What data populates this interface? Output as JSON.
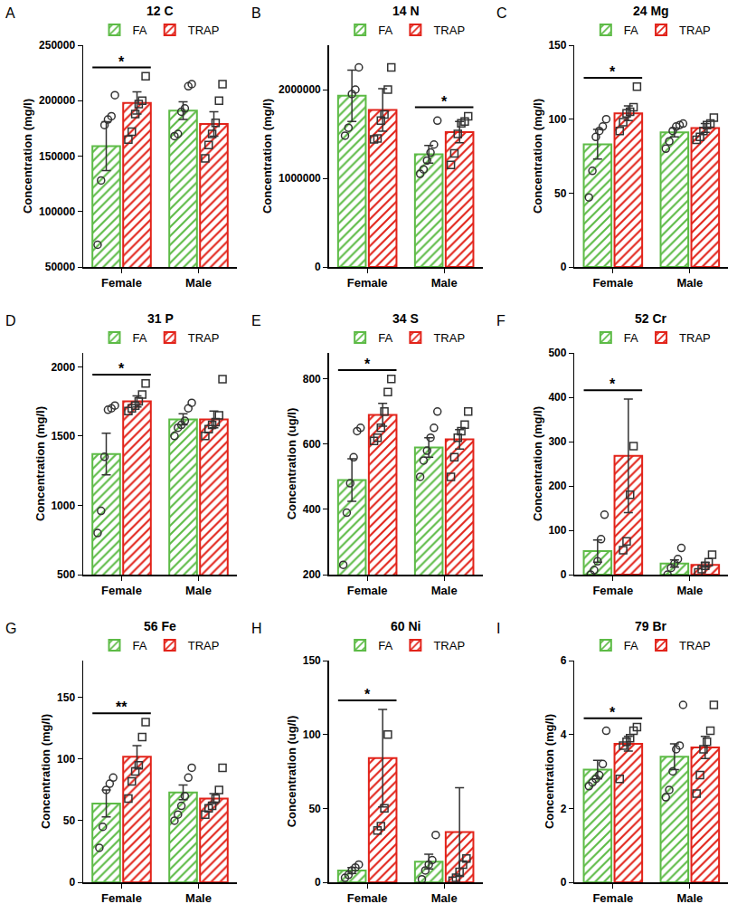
{
  "chart_data": [
    {
      "type": "bar",
      "panel": "A",
      "title": "12 C",
      "y_label": "Concentration (mg/l)",
      "categories": [
        "Female",
        "Male"
      ],
      "series": [
        {
          "name": "FA",
          "color": "#5dbb46",
          "marker": "circle",
          "values": [
            159000,
            191000
          ],
          "errors": [
            22000,
            8000
          ],
          "points": [
            [
              70000,
              128000,
              178000,
              183000,
              186000,
              205000
            ],
            [
              168000,
              170000,
              190000,
              193000,
              213000,
              215000
            ]
          ]
        },
        {
          "name": "TRAP",
          "color": "#e2231a",
          "marker": "square",
          "values": [
            198000,
            179000
          ],
          "errors": [
            10000,
            11000
          ],
          "points": [
            [
              165000,
              172000,
              188000,
              197000,
              200000,
              222000
            ],
            [
              148000,
              160000,
              170000,
              180000,
              200000,
              215000
            ]
          ]
        }
      ],
      "ylim": [
        50000,
        250000
      ],
      "yticks": [
        50000,
        100000,
        150000,
        200000,
        250000
      ],
      "significance": [
        {
          "category": "Female",
          "label": "*"
        }
      ],
      "grid": false
    },
    {
      "type": "bar",
      "panel": "B",
      "title": "14 N",
      "y_label": "Concentration (mg/l)",
      "categories": [
        "Female",
        "Male"
      ],
      "series": [
        {
          "name": "FA",
          "color": "#5dbb46",
          "marker": "circle",
          "values": [
            1930000,
            1270000
          ],
          "errors": [
            290000,
            100000
          ],
          "points": [
            [
              1480000,
              1570000,
              1950000,
              2000000,
              2250000
            ],
            [
              1050000,
              1100000,
              1200000,
              1290000,
              1380000,
              1650000
            ]
          ]
        },
        {
          "name": "TRAP",
          "color": "#e2231a",
          "marker": "square",
          "values": [
            1770000,
            1520000
          ],
          "errors": [
            240000,
            120000
          ],
          "points": [
            [
              1440000,
              1450000,
              1650000,
              1720000,
              2000000,
              2250000
            ],
            [
              1150000,
              1280000,
              1500000,
              1620000,
              1640000,
              1700000
            ]
          ]
        }
      ],
      "ylim": [
        0,
        2500000
      ],
      "yticks": [
        0,
        1000000,
        2000000
      ],
      "significance": [
        {
          "category": "Male",
          "label": "*"
        }
      ],
      "grid": false
    },
    {
      "type": "bar",
      "panel": "C",
      "title": "24 Mg",
      "y_label": "Concentration (mg/l)",
      "categories": [
        "Female",
        "Male"
      ],
      "series": [
        {
          "name": "FA",
          "color": "#5dbb46",
          "marker": "circle",
          "values": [
            83,
            91
          ],
          "errors": [
            10,
            3
          ],
          "points": [
            [
              47,
              65,
              88,
              92,
              95,
              100
            ],
            [
              80,
              85,
              92,
              95,
              96,
              97
            ]
          ]
        },
        {
          "name": "TRAP",
          "color": "#e2231a",
          "marker": "square",
          "values": [
            104,
            94
          ],
          "errors": [
            5,
            3
          ],
          "points": [
            [
              92,
              98,
              104,
              105,
              108,
              122
            ],
            [
              86,
              88,
              92,
              96,
              97,
              101
            ]
          ]
        }
      ],
      "ylim": [
        0,
        150
      ],
      "yticks": [
        0,
        50,
        100,
        150
      ],
      "significance": [
        {
          "category": "Female",
          "label": "*"
        }
      ],
      "grid": false
    },
    {
      "type": "bar",
      "panel": "D",
      "title": "31 P",
      "y_label": "Concentration (mg/l)",
      "categories": [
        "Female",
        "Male"
      ],
      "series": [
        {
          "name": "FA",
          "color": "#5dbb46",
          "marker": "circle",
          "values": [
            1370,
            1620
          ],
          "errors": [
            150,
            40
          ],
          "points": [
            [
              800,
              960,
              1350,
              1690,
              1700,
              1720
            ],
            [
              1500,
              1560,
              1580,
              1610,
              1700,
              1740
            ]
          ]
        },
        {
          "name": "TRAP",
          "color": "#e2231a",
          "marker": "square",
          "values": [
            1750,
            1620
          ],
          "errors": [
            40,
            60
          ],
          "points": [
            [
              1680,
              1700,
              1720,
              1750,
              1800,
              1880
            ],
            [
              1500,
              1550,
              1580,
              1600,
              1650,
              1910
            ]
          ]
        }
      ],
      "ylim": [
        500,
        2100
      ],
      "yticks": [
        500,
        1000,
        1500,
        2000
      ],
      "significance": [
        {
          "category": "Female",
          "label": "*"
        }
      ],
      "grid": false
    },
    {
      "type": "bar",
      "panel": "E",
      "title": "34 S",
      "y_label": "Concentration (ug/l)",
      "categories": [
        "Female",
        "Male"
      ],
      "series": [
        {
          "name": "FA",
          "color": "#5dbb46",
          "marker": "circle",
          "values": [
            490,
            590
          ],
          "errors": [
            65,
            30
          ],
          "points": [
            [
              230,
              390,
              480,
              560,
              640,
              650
            ],
            [
              500,
              550,
              580,
              620,
              650,
              700
            ]
          ]
        },
        {
          "name": "TRAP",
          "color": "#e2231a",
          "marker": "square",
          "values": [
            690,
            615
          ],
          "errors": [
            35,
            30
          ],
          "points": [
            [
              610,
              620,
              650,
              700,
              760,
              800
            ],
            [
              500,
              560,
              620,
              640,
              660,
              700
            ]
          ]
        }
      ],
      "ylim": [
        200,
        880
      ],
      "yticks": [
        200,
        400,
        600,
        800
      ],
      "significance": [
        {
          "category": "Female",
          "label": "*"
        }
      ],
      "grid": false
    },
    {
      "type": "bar",
      "panel": "F",
      "title": "52 Cr",
      "y_label": "Concentration (mg/l)",
      "categories": [
        "Female",
        "Male"
      ],
      "series": [
        {
          "name": "FA",
          "color": "#5dbb46",
          "marker": "circle",
          "values": [
            53,
            25
          ],
          "errors": [
            25,
            8
          ],
          "points": [
            [
              0,
              10,
              30,
              80,
              135
            ],
            [
              0,
              15,
              25,
              35,
              60
            ]
          ]
        },
        {
          "name": "TRAP",
          "color": "#e2231a",
          "marker": "square",
          "values": [
            268,
            22
          ],
          "errors": [
            128,
            5
          ],
          "points": [
            [
              55,
              75,
              180,
              290
            ],
            [
              5,
              12,
              20,
              28,
              45
            ]
          ]
        }
      ],
      "ylim": [
        0,
        500
      ],
      "yticks": [
        0,
        100,
        200,
        300,
        400,
        500
      ],
      "significance": [
        {
          "category": "Female",
          "label": "*"
        }
      ],
      "grid": false
    },
    {
      "type": "bar",
      "panel": "G",
      "title": "56 Fe",
      "y_label": "Concentration (mg/l)",
      "categories": [
        "Female",
        "Male"
      ],
      "series": [
        {
          "name": "FA",
          "color": "#5dbb46",
          "marker": "circle",
          "values": [
            64,
            73
          ],
          "errors": [
            11,
            6
          ],
          "points": [
            [
              28,
              45,
              75,
              80,
              85
            ],
            [
              50,
              55,
              62,
              70,
              85,
              93
            ]
          ]
        },
        {
          "name": "TRAP",
          "color": "#e2231a",
          "marker": "square",
          "values": [
            102,
            68
          ],
          "errors": [
            9,
            4
          ],
          "points": [
            [
              68,
              82,
              90,
              95,
              118,
              130
            ],
            [
              55,
              60,
              62,
              68,
              75,
              93
            ]
          ]
        }
      ],
      "ylim": [
        0,
        180
      ],
      "yticks": [
        0,
        50,
        100,
        150
      ],
      "significance": [
        {
          "category": "Female",
          "label": "**"
        }
      ],
      "grid": false
    },
    {
      "type": "bar",
      "panel": "H",
      "title": "60 Ni",
      "y_label": "Concentration (ug/l)",
      "categories": [
        "Female",
        "Male"
      ],
      "series": [
        {
          "name": "FA",
          "color": "#5dbb46",
          "marker": "circle",
          "values": [
            8,
            14
          ],
          "errors": [
            2,
            5
          ],
          "points": [
            [
              3,
              5,
              8,
              10,
              12
            ],
            [
              2,
              8,
              12,
              15,
              32
            ]
          ]
        },
        {
          "name": "TRAP",
          "color": "#e2231a",
          "marker": "square",
          "values": [
            84,
            34
          ],
          "errors": [
            33,
            30
          ],
          "points": [
            [
              35,
              38,
              50,
              100
            ],
            [
              1,
              3,
              7,
              12,
              16
            ]
          ]
        }
      ],
      "ylim": [
        0,
        150
      ],
      "yticks": [
        0,
        50,
        100,
        150
      ],
      "significance": [
        {
          "category": "Female",
          "label": "*"
        }
      ],
      "grid": false
    },
    {
      "type": "bar",
      "panel": "I",
      "title": "79 Br",
      "y_label": "Concentration (mg/l)",
      "categories": [
        "Female",
        "Male"
      ],
      "series": [
        {
          "name": "FA",
          "color": "#5dbb46",
          "marker": "circle",
          "values": [
            3.05,
            3.4
          ],
          "errors": [
            0.25,
            0.35
          ],
          "points": [
            [
              2.6,
              2.7,
              2.8,
              2.9,
              3.2,
              4.1
            ],
            [
              2.3,
              2.5,
              3.0,
              3.6,
              3.7,
              4.8
            ]
          ]
        },
        {
          "name": "TRAP",
          "color": "#e2231a",
          "marker": "square",
          "values": [
            3.75,
            3.65
          ],
          "errors": [
            0.2,
            0.3
          ],
          "points": [
            [
              2.8,
              3.7,
              3.8,
              3.9,
              4.1,
              4.2
            ],
            [
              2.4,
              2.9,
              3.6,
              3.8,
              4.1,
              4.8
            ]
          ]
        }
      ],
      "ylim": [
        0,
        6
      ],
      "yticks": [
        0,
        2,
        4,
        6
      ],
      "significance": [
        {
          "category": "Female",
          "label": "*"
        }
      ],
      "grid": false
    }
  ]
}
